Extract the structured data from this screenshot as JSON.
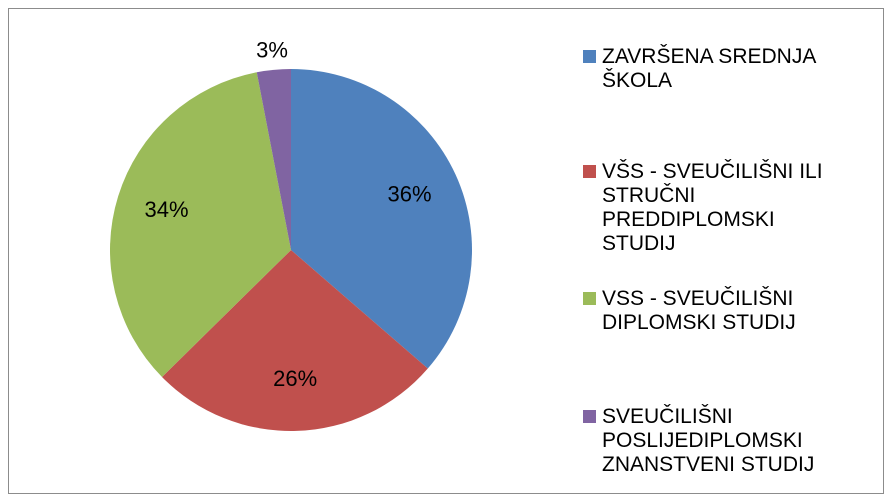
{
  "chart_data": {
    "type": "pie",
    "categories": [
      "ZAVRŠENA SREDNJA ŠKOLA",
      "VŠS - SVEUČILIŠNI ILI STRUČNI PREDDIPLOMSKI STUDIJ",
      "VSS - SVEUČILIŠNI DIPLOMSKI STUDIJ",
      "SVEUČILIŠNI POSLIJEDIPLOMSKI ZNANSTVENI STUDIJ"
    ],
    "values": [
      36,
      26,
      34,
      3
    ],
    "value_labels": [
      "36%",
      "26%",
      "34%",
      "3%"
    ],
    "colors": [
      "#4f81bd",
      "#c0504d",
      "#9bbb59",
      "#8064a2"
    ],
    "legend": "right"
  }
}
